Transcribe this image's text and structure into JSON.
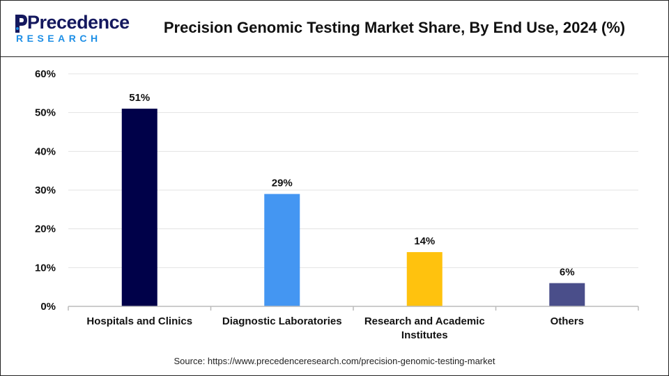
{
  "header": {
    "logo_word": "Precedence",
    "logo_sub": "RESEARCH",
    "title": "Precision Genomic Testing Market Share, By End Use, 2024 (%)"
  },
  "colors": {
    "logo_navy": "#14185e",
    "logo_blue": "#1e8fe6"
  },
  "chart_data": {
    "type": "bar",
    "categories": [
      [
        "Hospitals and Clinics"
      ],
      [
        "Diagnostic Laboratories"
      ],
      [
        "Research and Academic",
        "Institutes"
      ],
      [
        "Others"
      ]
    ],
    "values": [
      51,
      29,
      14,
      6
    ],
    "data_labels": [
      "51%",
      "29%",
      "14%",
      "6%"
    ],
    "bar_colors": [
      "#000149",
      "#4496f2",
      "#ffc20e",
      "#4a4e8a"
    ],
    "ylim": [
      0,
      60
    ],
    "yticks": [
      0,
      10,
      20,
      30,
      40,
      50,
      60
    ],
    "ytick_labels": [
      "0%",
      "10%",
      "20%",
      "30%",
      "40%",
      "50%",
      "60%"
    ],
    "grid": true,
    "title": "Precision Genomic Testing Market Share, By End Use, 2024 (%)",
    "xlabel": "",
    "ylabel": ""
  },
  "footer": {
    "source": "Source: https://www.precedenceresearch.com/precision-genomic-testing-market"
  }
}
